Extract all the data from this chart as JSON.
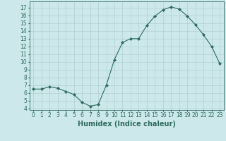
{
  "x": [
    0,
    1,
    2,
    3,
    4,
    5,
    6,
    7,
    8,
    9,
    10,
    11,
    12,
    13,
    14,
    15,
    16,
    17,
    18,
    19,
    20,
    21,
    22,
    23
  ],
  "y": [
    6.5,
    6.5,
    6.8,
    6.6,
    6.2,
    5.8,
    4.8,
    4.3,
    4.5,
    7.0,
    10.3,
    12.5,
    13.0,
    13.0,
    14.7,
    15.9,
    16.7,
    17.1,
    16.8,
    15.9,
    14.8,
    13.5,
    12.0,
    9.8
  ],
  "xlabel": "Humidex (Indice chaleur)",
  "ylim": [
    3.8,
    17.8
  ],
  "xlim": [
    -0.5,
    23.5
  ],
  "yticks": [
    4,
    5,
    6,
    7,
    8,
    9,
    10,
    11,
    12,
    13,
    14,
    15,
    16,
    17
  ],
  "xticks": [
    0,
    1,
    2,
    3,
    4,
    5,
    6,
    7,
    8,
    9,
    10,
    11,
    12,
    13,
    14,
    15,
    16,
    17,
    18,
    19,
    20,
    21,
    22,
    23
  ],
  "xtick_labels": [
    "0",
    "1",
    "2",
    "3",
    "4",
    "5",
    "6",
    "7",
    "8",
    "9",
    "10",
    "11",
    "12",
    "13",
    "14",
    "15",
    "16",
    "17",
    "18",
    "19",
    "20",
    "21",
    "22",
    "23"
  ],
  "line_color": "#2d6b5e",
  "marker": "D",
  "marker_size": 2.0,
  "bg_color": "#cce8ea",
  "grid_color": "#aac8cc",
  "tick_label_fontsize": 5.5,
  "xlabel_fontsize": 7.0,
  "line_width": 0.8
}
